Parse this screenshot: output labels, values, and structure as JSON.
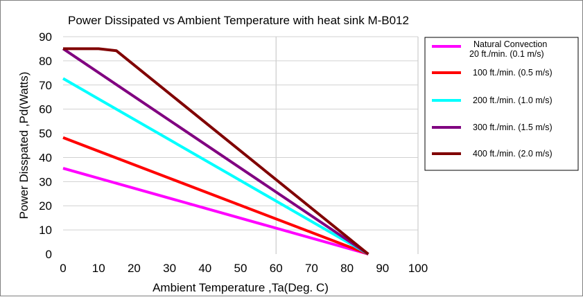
{
  "chart_data": {
    "type": "line",
    "title": "Power Dissipated vs Ambient Temperature with heat sink M-B012",
    "xlabel": "Ambient Temperature ,Ta(Deg. C)",
    "ylabel": "Power Disspated ,Pd(Watts)",
    "xlim": [
      0,
      100
    ],
    "ylim": [
      0,
      90
    ],
    "x_ticks": [
      0,
      10,
      20,
      30,
      40,
      50,
      60,
      70,
      80,
      90,
      100
    ],
    "y_ticks": [
      0,
      10,
      20,
      30,
      40,
      50,
      60,
      70,
      80,
      90
    ],
    "x_tick_labels": [
      "0",
      "10",
      "20",
      "30",
      "40",
      "50",
      "60",
      "70",
      "80",
      "90",
      "100"
    ],
    "y_tick_labels": [
      "0",
      "10",
      "20",
      "30",
      "40",
      "50",
      "60",
      "70",
      "80",
      "90"
    ],
    "grid": true,
    "legend_position": "right",
    "series": [
      {
        "name": "Natural Convection 20 ft./min. (0.1 m/s)",
        "legend_lines": [
          "Natural Convection",
          "20 ft./min. (0.1 m/s)"
        ],
        "color": "#ff00ff",
        "x": [
          0,
          86
        ],
        "y": [
          35.5,
          0
        ]
      },
      {
        "name": "100 ft./min. (0.5 m/s)",
        "legend_lines": [
          "100 ft./min. (0.5 m/s)"
        ],
        "color": "#ff0000",
        "x": [
          0,
          86
        ],
        "y": [
          48.2,
          0
        ]
      },
      {
        "name": "200 ft./min. (1.0 m/s)",
        "legend_lines": [
          "200 ft./min. (1.0 m/s)"
        ],
        "color": "#00ffff",
        "x": [
          0,
          86
        ],
        "y": [
          72.7,
          0
        ]
      },
      {
        "name": "300 ft./min. (1.5 m/s)",
        "legend_lines": [
          "300 ft./min. (1.5 m/s)"
        ],
        "color": "#800080",
        "x": [
          0,
          86
        ],
        "y": [
          85,
          0
        ]
      },
      {
        "name": "400 ft./min. (2.0 m/s)",
        "legend_lines": [
          "400 ft./min. (2.0 m/s)"
        ],
        "color": "#800000",
        "x": [
          0,
          10,
          15,
          86
        ],
        "y": [
          85,
          85,
          84.2,
          0
        ]
      }
    ]
  }
}
